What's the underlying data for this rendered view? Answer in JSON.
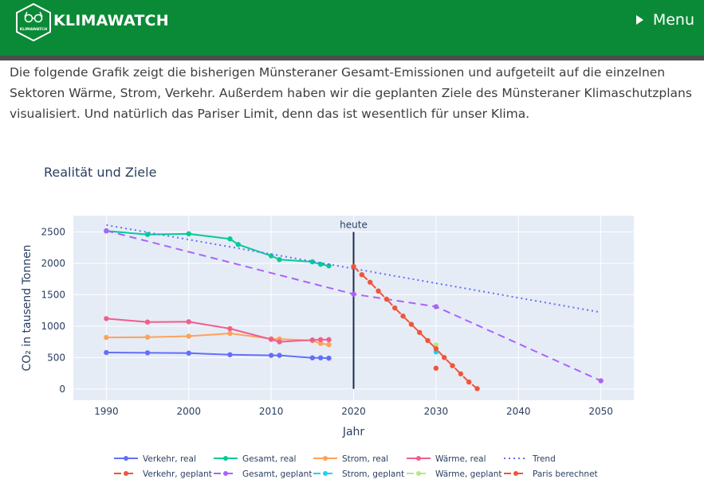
{
  "header": {
    "brand": "KLIMAWATCH",
    "logo_text": "KLIMAWATCH",
    "menu_label": "Menu",
    "background_color": "#0a8a36"
  },
  "intro_text": "Die folgende Grafik zeigt die bisherigen Münsteraner Gesamt-Emissionen und aufgeteilt auf die einzelnen Sektoren Wärme, Strom, Verkehr. Außerdem haben wir die geplanten Ziele des Münsteraner Klimaschutzplans visualisiert. Und natürlich das Pariser Limit, denn das ist wesentlich für unser Klima.",
  "chart_data": {
    "type": "line",
    "title": "Realität und Ziele",
    "xlabel": "Jahr",
    "ylabel": "CO₂ in tausend Tonnen",
    "xlim": [
      1986,
      2054
    ],
    "ylim": [
      -180,
      2760
    ],
    "xticks": [
      1990,
      2000,
      2010,
      2020,
      2030,
      2040,
      2050
    ],
    "yticks": [
      0,
      500,
      1000,
      1500,
      2000,
      2500
    ],
    "grid": true,
    "legend_position": "bottom",
    "annotation": {
      "x": 2020,
      "label": "heute"
    },
    "series": [
      {
        "name": "Verkehr, real",
        "color": "#636efa",
        "dash": "solid",
        "markers": true,
        "points": [
          [
            1990,
            580
          ],
          [
            1995,
            575
          ],
          [
            2000,
            570
          ],
          [
            2005,
            545
          ],
          [
            2010,
            535
          ],
          [
            2011,
            535
          ],
          [
            2015,
            495
          ],
          [
            2016,
            495
          ],
          [
            2017,
            490
          ]
        ]
      },
      {
        "name": "Gesamt, real",
        "color": "#00cc96",
        "dash": "solid",
        "markers": true,
        "points": [
          [
            1990,
            2515
          ],
          [
            1995,
            2460
          ],
          [
            2000,
            2470
          ],
          [
            2005,
            2390
          ],
          [
            2006,
            2300
          ],
          [
            2010,
            2120
          ],
          [
            2011,
            2060
          ],
          [
            2015,
            2025
          ],
          [
            2016,
            1985
          ],
          [
            2017,
            1960
          ]
        ]
      },
      {
        "name": "Strom, real",
        "color": "#ffa15a",
        "dash": "solid",
        "markers": true,
        "points": [
          [
            1990,
            820
          ],
          [
            1995,
            825
          ],
          [
            2000,
            840
          ],
          [
            2005,
            885
          ],
          [
            2010,
            800
          ],
          [
            2011,
            795
          ],
          [
            2015,
            770
          ],
          [
            2016,
            725
          ],
          [
            2017,
            705
          ]
        ]
      },
      {
        "name": "Wärme, real",
        "color": "#ef5f8b",
        "dash": "solid",
        "markers": true,
        "points": [
          [
            1990,
            1120
          ],
          [
            1995,
            1065
          ],
          [
            2000,
            1070
          ],
          [
            2005,
            960
          ],
          [
            2010,
            790
          ],
          [
            2011,
            750
          ],
          [
            2015,
            780
          ],
          [
            2016,
            785
          ],
          [
            2017,
            785
          ]
        ]
      },
      {
        "name": "Trend",
        "color": "#636efa",
        "dash": "dot",
        "markers": false,
        "points": [
          [
            1990,
            2610
          ],
          [
            2050,
            1220
          ]
        ]
      },
      {
        "name": "Verkehr, geplant",
        "color": "#ef553b",
        "dash": "dash",
        "markers": true,
        "points": [
          [
            2030,
            330
          ]
        ]
      },
      {
        "name": "Gesamt, geplant",
        "color": "#ab63fa",
        "dash": "dash",
        "markers": true,
        "points": [
          [
            1990,
            2520
          ],
          [
            2020,
            1510
          ],
          [
            2030,
            1310
          ],
          [
            2050,
            130
          ]
        ]
      },
      {
        "name": "Strom, geplant",
        "color": "#19d3f3",
        "dash": "dash",
        "markers": true,
        "points": [
          [
            2030,
            590
          ]
        ]
      },
      {
        "name": "Wärme, geplant",
        "color": "#b6e880",
        "dash": "dash",
        "markers": true,
        "points": [
          [
            2030,
            700
          ]
        ]
      },
      {
        "name": "Paris berechnet",
        "color": "#ef553b",
        "dash": "dash",
        "markers": true,
        "points": [
          [
            2020,
            1950
          ],
          [
            2021,
            1820
          ],
          [
            2022,
            1700
          ],
          [
            2023,
            1560
          ],
          [
            2024,
            1430
          ],
          [
            2025,
            1290
          ],
          [
            2026,
            1160
          ],
          [
            2027,
            1030
          ],
          [
            2028,
            900
          ],
          [
            2029,
            770
          ],
          [
            2030,
            640
          ],
          [
            2031,
            500
          ],
          [
            2032,
            370
          ],
          [
            2033,
            240
          ],
          [
            2034,
            110
          ],
          [
            2035,
            5
          ]
        ]
      }
    ]
  }
}
